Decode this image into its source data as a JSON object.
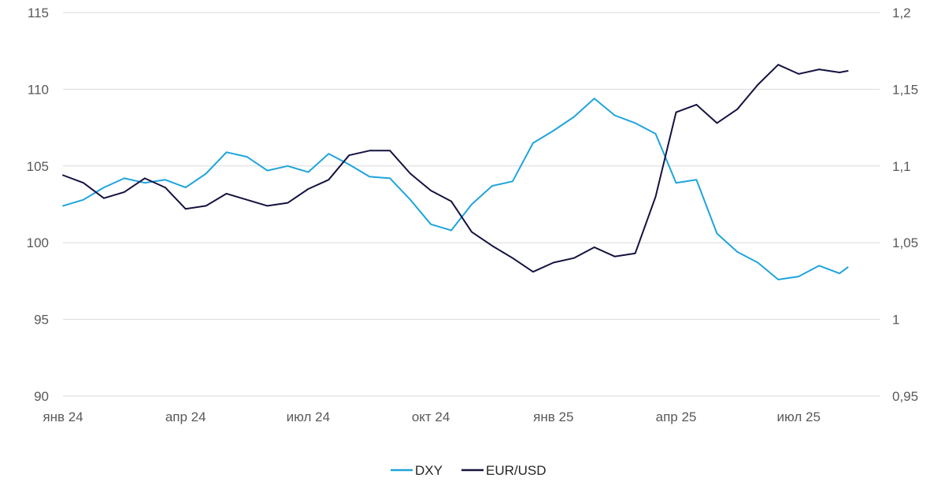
{
  "chart_data": {
    "type": "line",
    "title": "",
    "xlabel": "",
    "ylabel": "",
    "x_tick_labels": [
      "янв 24",
      "апр 24",
      "июл 24",
      "окт 24",
      "янв 25",
      "апр 25",
      "июл 25"
    ],
    "y_left_ticks": [
      "90",
      "95",
      "100",
      "105",
      "110",
      "115"
    ],
    "y_right_ticks": [
      "0,95",
      "1",
      "1,05",
      "1,1",
      "1,15",
      "1,2"
    ],
    "ylim_left": [
      90,
      115
    ],
    "ylim_right": [
      0.95,
      1.2
    ],
    "grid": true,
    "legend_position": "bottom-center",
    "x_month_index": [
      0,
      0.5,
      1,
      1.5,
      2,
      2.5,
      3,
      3.5,
      4,
      4.5,
      5,
      5.5,
      6,
      6.5,
      7,
      7.5,
      8,
      8.5,
      9,
      9.5,
      10,
      10.5,
      11,
      11.5,
      12,
      12.5,
      13,
      13.5,
      14,
      14.5,
      15,
      15.5,
      16,
      16.5,
      17,
      17.5,
      18,
      18.5,
      19,
      19.2
    ],
    "series": [
      {
        "name": "DXY",
        "axis": "left",
        "color": "#1FA4DB",
        "values": [
          102.4,
          102.8,
          103.6,
          104.2,
          103.9,
          104.1,
          103.6,
          104.5,
          105.9,
          105.6,
          104.7,
          105.0,
          104.6,
          105.8,
          105.1,
          104.3,
          104.2,
          102.8,
          101.2,
          100.8,
          102.5,
          103.7,
          104.0,
          106.5,
          107.3,
          108.2,
          109.4,
          108.3,
          107.8,
          107.1,
          103.9,
          104.1,
          100.6,
          99.4,
          98.7,
          97.6,
          97.8,
          98.5,
          98.0,
          98.4
        ]
      },
      {
        "name": "EUR/USD",
        "axis": "right",
        "color": "#14123F",
        "values": [
          1.094,
          1.089,
          1.079,
          1.083,
          1.092,
          1.086,
          1.072,
          1.074,
          1.082,
          1.078,
          1.074,
          1.076,
          1.085,
          1.091,
          1.107,
          1.11,
          1.11,
          1.095,
          1.084,
          1.077,
          1.057,
          1.048,
          1.04,
          1.031,
          1.037,
          1.04,
          1.047,
          1.041,
          1.043,
          1.08,
          1.135,
          1.14,
          1.128,
          1.137,
          1.153,
          1.166,
          1.16,
          1.163,
          1.161,
          1.162
        ]
      }
    ]
  }
}
